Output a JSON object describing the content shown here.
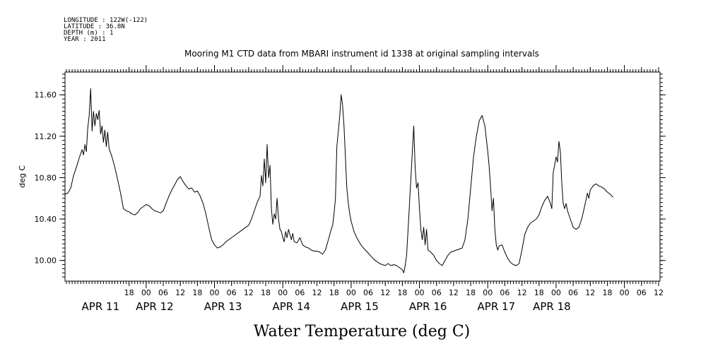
{
  "metadata": [
    "LONGITUDE : 122W(-122)",
    "LATITUDE : 36.8N",
    "DEPTH (m) : 1",
    "YEAR : 2011"
  ],
  "chart_data": {
    "type": "line",
    "title": "Mooring M1 CTD data from MBARI instrument id 1338 at original sampling intervals",
    "xlabel": "Water Temperature (deg C)",
    "ylabel": "deg C",
    "ylim": [
      9.8,
      11.82
    ],
    "xlim_hours_from_apr11_00": [
      -28.5,
      180.5
    ],
    "yticks": [
      {
        "value": 10.0,
        "label": "10.00"
      },
      {
        "value": 10.4,
        "label": "10.40"
      },
      {
        "value": 10.8,
        "label": "10.80"
      },
      {
        "value": 11.2,
        "label": "11.20"
      },
      {
        "value": 11.6,
        "label": "11.60"
      }
    ],
    "hour_ticks": [
      {
        "t": -6,
        "label": "18"
      },
      {
        "t": 0,
        "label": "00"
      },
      {
        "t": 6,
        "label": "06"
      },
      {
        "t": 12,
        "label": "12"
      },
      {
        "t": 18,
        "label": "18"
      },
      {
        "t": 24,
        "label": "00"
      },
      {
        "t": 30,
        "label": "06"
      },
      {
        "t": 36,
        "label": "12"
      },
      {
        "t": 42,
        "label": "18"
      },
      {
        "t": 48,
        "label": "00"
      },
      {
        "t": 54,
        "label": "06"
      },
      {
        "t": 60,
        "label": "12"
      },
      {
        "t": 66,
        "label": "18"
      },
      {
        "t": 72,
        "label": "00"
      },
      {
        "t": 78,
        "label": "06"
      },
      {
        "t": 84,
        "label": "12"
      },
      {
        "t": 90,
        "label": "18"
      },
      {
        "t": 96,
        "label": "00"
      },
      {
        "t": 102,
        "label": "06"
      },
      {
        "t": 108,
        "label": "12"
      },
      {
        "t": 114,
        "label": "18"
      },
      {
        "t": 120,
        "label": "00"
      },
      {
        "t": 126,
        "label": "06"
      },
      {
        "t": 132,
        "label": "12"
      },
      {
        "t": 138,
        "label": "18"
      },
      {
        "t": 144,
        "label": "00"
      },
      {
        "t": 150,
        "label": "06"
      },
      {
        "t": 156,
        "label": "12"
      },
      {
        "t": 162,
        "label": "18"
      },
      {
        "t": 168,
        "label": "00"
      },
      {
        "t": 174,
        "label": "06"
      },
      {
        "t": 180,
        "label": "12"
      }
    ],
    "day_labels": [
      {
        "t": -16,
        "label": "APR 11"
      },
      {
        "t": 3,
        "label": "APR 12"
      },
      {
        "t": 27,
        "label": "APR 13"
      },
      {
        "t": 51,
        "label": "APR 14"
      },
      {
        "t": 75,
        "label": "APR 15"
      },
      {
        "t": 99,
        "label": "APR 16"
      },
      {
        "t": 123,
        "label": "APR 17"
      },
      {
        "t": 142.5,
        "label": "APR 18"
      }
    ],
    "grid": false,
    "series": [
      {
        "color": "#000000",
        "points": [
          [
            -28.5,
            10.64
          ],
          [
            -27.5,
            10.65
          ],
          [
            -26.5,
            10.7
          ],
          [
            -25.5,
            10.82
          ],
          [
            -24.5,
            10.9
          ],
          [
            -23.5,
            10.99
          ],
          [
            -22.5,
            11.07
          ],
          [
            -22.0,
            11.02
          ],
          [
            -21.5,
            11.12
          ],
          [
            -21.0,
            11.05
          ],
          [
            -20.5,
            11.28
          ],
          [
            -20.0,
            11.4
          ],
          [
            -19.5,
            11.66
          ],
          [
            -19.0,
            11.25
          ],
          [
            -18.5,
            11.44
          ],
          [
            -18.0,
            11.3
          ],
          [
            -17.5,
            11.42
          ],
          [
            -17.0,
            11.36
          ],
          [
            -16.5,
            11.45
          ],
          [
            -16.0,
            11.22
          ],
          [
            -15.5,
            11.3
          ],
          [
            -15.0,
            11.14
          ],
          [
            -14.5,
            11.26
          ],
          [
            -14.0,
            11.1
          ],
          [
            -13.5,
            11.24
          ],
          [
            -13.0,
            11.08
          ],
          [
            -12.0,
            11.0
          ],
          [
            -11.0,
            10.9
          ],
          [
            -10.0,
            10.78
          ],
          [
            -9.0,
            10.65
          ],
          [
            -8.0,
            10.5
          ],
          [
            -7.0,
            10.48
          ],
          [
            -6.0,
            10.47
          ],
          [
            -5.0,
            10.45
          ],
          [
            -4.0,
            10.44
          ],
          [
            -3.0,
            10.46
          ],
          [
            -2.0,
            10.5
          ],
          [
            -1.0,
            10.52
          ],
          [
            0.0,
            10.54
          ],
          [
            1.0,
            10.53
          ],
          [
            2.0,
            10.5
          ],
          [
            3.0,
            10.48
          ],
          [
            4.0,
            10.47
          ],
          [
            5.0,
            10.46
          ],
          [
            6.0,
            10.48
          ],
          [
            7.0,
            10.55
          ],
          [
            8.0,
            10.62
          ],
          [
            9.0,
            10.68
          ],
          [
            10.0,
            10.73
          ],
          [
            11.0,
            10.78
          ],
          [
            12.0,
            10.81
          ],
          [
            13.0,
            10.76
          ],
          [
            14.0,
            10.72
          ],
          [
            15.0,
            10.69
          ],
          [
            16.0,
            10.7
          ],
          [
            17.0,
            10.66
          ],
          [
            18.0,
            10.67
          ],
          [
            19.0,
            10.62
          ],
          [
            20.0,
            10.55
          ],
          [
            21.0,
            10.45
          ],
          [
            22.0,
            10.32
          ],
          [
            23.0,
            10.2
          ],
          [
            24.0,
            10.15
          ],
          [
            25.0,
            10.12
          ],
          [
            26.0,
            10.13
          ],
          [
            27.0,
            10.15
          ],
          [
            28.0,
            10.18
          ],
          [
            29.0,
            10.2
          ],
          [
            30.0,
            10.22
          ],
          [
            31.0,
            10.24
          ],
          [
            32.0,
            10.26
          ],
          [
            33.0,
            10.28
          ],
          [
            34.0,
            10.3
          ],
          [
            35.0,
            10.32
          ],
          [
            36.0,
            10.34
          ],
          [
            37.0,
            10.4
          ],
          [
            38.0,
            10.48
          ],
          [
            39.0,
            10.56
          ],
          [
            40.0,
            10.62
          ],
          [
            40.5,
            10.82
          ],
          [
            41.0,
            10.72
          ],
          [
            41.5,
            10.98
          ],
          [
            42.0,
            10.75
          ],
          [
            42.5,
            11.12
          ],
          [
            43.0,
            10.8
          ],
          [
            43.5,
            10.92
          ],
          [
            44.0,
            10.5
          ],
          [
            44.5,
            10.35
          ],
          [
            45.0,
            10.45
          ],
          [
            45.5,
            10.4
          ],
          [
            46.0,
            10.6
          ],
          [
            46.5,
            10.4
          ],
          [
            47.0,
            10.3
          ],
          [
            47.5,
            10.28
          ],
          [
            48.0,
            10.22
          ],
          [
            48.5,
            10.18
          ],
          [
            49.0,
            10.28
          ],
          [
            49.5,
            10.22
          ],
          [
            50.0,
            10.3
          ],
          [
            50.5,
            10.25
          ],
          [
            51.0,
            10.2
          ],
          [
            51.5,
            10.26
          ],
          [
            52.0,
            10.18
          ],
          [
            53.0,
            10.17
          ],
          [
            54.0,
            10.22
          ],
          [
            55.0,
            10.15
          ],
          [
            56.0,
            10.13
          ],
          [
            57.0,
            10.12
          ],
          [
            58.0,
            10.1
          ],
          [
            59.0,
            10.09
          ],
          [
            60.0,
            10.09
          ],
          [
            61.0,
            10.08
          ],
          [
            62.0,
            10.06
          ],
          [
            63.0,
            10.1
          ],
          [
            64.0,
            10.2
          ],
          [
            65.0,
            10.3
          ],
          [
            65.5,
            10.34
          ],
          [
            66.0,
            10.45
          ],
          [
            66.5,
            10.6
          ],
          [
            67.0,
            11.1
          ],
          [
            67.5,
            11.25
          ],
          [
            68.0,
            11.4
          ],
          [
            68.5,
            11.6
          ],
          [
            69.0,
            11.5
          ],
          [
            69.5,
            11.3
          ],
          [
            70.0,
            11.0
          ],
          [
            70.5,
            10.7
          ],
          [
            71.0,
            10.55
          ],
          [
            71.5,
            10.45
          ],
          [
            72.0,
            10.38
          ],
          [
            73.0,
            10.28
          ],
          [
            74.0,
            10.22
          ],
          [
            75.0,
            10.17
          ],
          [
            76.0,
            10.13
          ],
          [
            77.0,
            10.1
          ],
          [
            78.0,
            10.07
          ],
          [
            79.0,
            10.04
          ],
          [
            80.0,
            10.01
          ],
          [
            81.0,
            9.99
          ],
          [
            82.0,
            9.97
          ],
          [
            83.0,
            9.96
          ],
          [
            84.0,
            9.95
          ],
          [
            85.0,
            9.97
          ],
          [
            86.0,
            9.95
          ],
          [
            87.0,
            9.96
          ],
          [
            88.0,
            9.95
          ],
          [
            89.0,
            9.93
          ],
          [
            90.0,
            9.91
          ],
          [
            90.5,
            9.88
          ],
          [
            91.0,
            9.95
          ],
          [
            91.5,
            10.05
          ],
          [
            92.0,
            10.3
          ],
          [
            92.5,
            10.55
          ],
          [
            93.0,
            10.8
          ],
          [
            93.5,
            11.05
          ],
          [
            94.0,
            11.3
          ],
          [
            94.5,
            10.9
          ],
          [
            95.0,
            10.7
          ],
          [
            95.5,
            10.75
          ],
          [
            96.0,
            10.5
          ],
          [
            96.5,
            10.3
          ],
          [
            97.0,
            10.2
          ],
          [
            97.5,
            10.32
          ],
          [
            98.0,
            10.15
          ],
          [
            98.5,
            10.3
          ],
          [
            99.0,
            10.1
          ],
          [
            100.0,
            10.08
          ],
          [
            101.0,
            10.05
          ],
          [
            102.0,
            10.0
          ],
          [
            103.0,
            9.97
          ],
          [
            104.0,
            9.95
          ],
          [
            105.0,
            10.0
          ],
          [
            106.0,
            10.05
          ],
          [
            107.0,
            10.08
          ],
          [
            108.0,
            10.09
          ],
          [
            109.0,
            10.1
          ],
          [
            110.0,
            10.11
          ],
          [
            111.0,
            10.12
          ],
          [
            112.0,
            10.2
          ],
          [
            113.0,
            10.4
          ],
          [
            114.0,
            10.7
          ],
          [
            115.0,
            11.0
          ],
          [
            116.0,
            11.2
          ],
          [
            117.0,
            11.35
          ],
          [
            118.0,
            11.4
          ],
          [
            119.0,
            11.3
          ],
          [
            120.0,
            11.05
          ],
          [
            120.5,
            10.9
          ],
          [
            121.0,
            10.7
          ],
          [
            121.5,
            10.48
          ],
          [
            122.0,
            10.6
          ],
          [
            122.5,
            10.3
          ],
          [
            123.0,
            10.15
          ],
          [
            123.5,
            10.1
          ],
          [
            124.0,
            10.14
          ],
          [
            125.0,
            10.15
          ],
          [
            126.0,
            10.08
          ],
          [
            127.0,
            10.02
          ],
          [
            128.0,
            9.98
          ],
          [
            129.0,
            9.96
          ],
          [
            130.0,
            9.95
          ],
          [
            131.0,
            9.97
          ],
          [
            132.0,
            10.1
          ],
          [
            133.0,
            10.25
          ],
          [
            134.0,
            10.32
          ],
          [
            135.0,
            10.36
          ],
          [
            136.0,
            10.38
          ],
          [
            137.0,
            10.4
          ],
          [
            138.0,
            10.44
          ],
          [
            139.0,
            10.52
          ],
          [
            140.0,
            10.58
          ],
          [
            141.0,
            10.62
          ],
          [
            142.0,
            10.55
          ],
          [
            142.5,
            10.5
          ],
          [
            143.0,
            10.85
          ],
          [
            143.5,
            10.92
          ],
          [
            144.0,
            11.0
          ],
          [
            144.5,
            10.95
          ],
          [
            145.0,
            11.15
          ],
          [
            145.5,
            11.05
          ],
          [
            146.0,
            10.75
          ],
          [
            146.5,
            10.55
          ],
          [
            147.0,
            10.5
          ],
          [
            147.5,
            10.55
          ],
          [
            148.0,
            10.48
          ],
          [
            149.0,
            10.4
          ],
          [
            150.0,
            10.32
          ],
          [
            151.0,
            10.3
          ],
          [
            152.0,
            10.32
          ],
          [
            153.0,
            10.4
          ],
          [
            154.0,
            10.52
          ],
          [
            155.0,
            10.65
          ],
          [
            155.5,
            10.6
          ],
          [
            156.0,
            10.68
          ],
          [
            157.0,
            10.72
          ],
          [
            158.0,
            10.74
          ],
          [
            159.0,
            10.72
          ],
          [
            160.0,
            10.71
          ],
          [
            161.0,
            10.69
          ],
          [
            162.0,
            10.66
          ],
          [
            163.0,
            10.64
          ],
          [
            164.0,
            10.61
          ]
        ]
      }
    ]
  }
}
